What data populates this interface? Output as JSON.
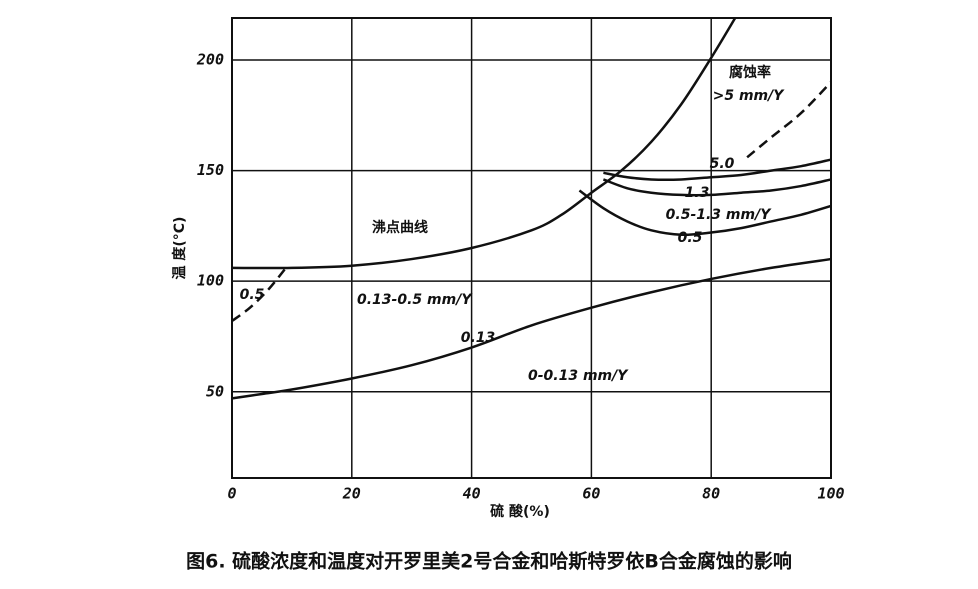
{
  "chart_data": {
    "type": "line",
    "caption": "图6.  硫酸浓度和温度对开罗里美2号合金和哈斯特罗依B合金腐蚀的影响",
    "xlabel": "硫 酸(%)",
    "ylabel": "温 度(°C)",
    "xlim": [
      0,
      100
    ],
    "xticks": [
      0,
      20,
      40,
      60,
      80,
      100
    ],
    "ylim": [
      11,
      219
    ],
    "yticks": [
      50,
      100,
      150,
      200
    ],
    "grid": true,
    "color": "#111111",
    "series": [
      {
        "name": "沸点曲线",
        "style": "solid",
        "x": [
          0,
          10,
          20,
          30,
          40,
          50,
          55,
          60,
          65,
          70,
          75,
          80,
          84
        ],
        "values": [
          106,
          106,
          107,
          110,
          115,
          123,
          130,
          140,
          150,
          163,
          180,
          201,
          219
        ]
      },
      {
        "name": "0.5",
        "style": "dashed",
        "x": [
          0,
          3,
          6,
          9
        ],
        "values": [
          82,
          88,
          96,
          106
        ]
      },
      {
        "name": "0.13",
        "style": "solid",
        "x": [
          0,
          5,
          10,
          20,
          30,
          40,
          50,
          60,
          70,
          80,
          90,
          100
        ],
        "values": [
          47,
          49,
          51,
          56,
          62,
          70,
          80,
          88,
          95,
          101,
          106,
          110
        ]
      },
      {
        "name": "0.5",
        "style": "solid",
        "x": [
          58,
          62,
          66,
          70,
          75,
          80,
          85,
          90,
          95,
          100
        ],
        "values": [
          141,
          133,
          127,
          123,
          121,
          122,
          124,
          127,
          130,
          134
        ]
      },
      {
        "name": "1.3",
        "style": "solid",
        "x": [
          62,
          66,
          70,
          75,
          80,
          85,
          90,
          95,
          100
        ],
        "values": [
          146,
          142,
          140,
          139,
          139,
          140,
          141,
          143,
          146
        ]
      },
      {
        "name": "5.0",
        "style": "solid",
        "x": [
          62,
          66,
          70,
          75,
          80,
          85,
          90,
          95,
          100
        ],
        "values": [
          149,
          147,
          146,
          146,
          147,
          148,
          150,
          152,
          155
        ]
      },
      {
        "style": "dashed",
        "x": [
          86,
          90,
          95,
          100
        ],
        "values": [
          156,
          165,
          176,
          190
        ]
      }
    ],
    "annotations": [
      "腐蚀率",
      ">5 mm/Y",
      "0.5-1.3 mm/Y",
      "0.13-0.5 mm/Y",
      "0-0.13 mm/Y"
    ]
  }
}
